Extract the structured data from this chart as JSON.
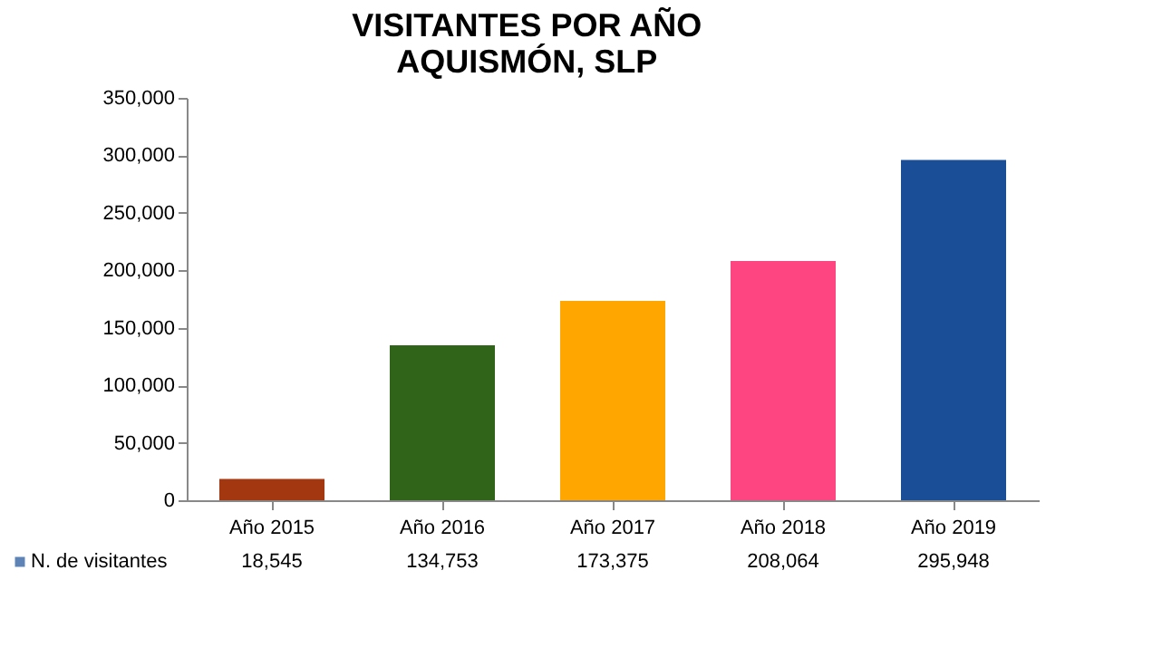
{
  "chart_data": {
    "type": "bar",
    "title": "VISITANTES POR AÑO\nAQUISMÓN, SLP",
    "categories": [
      "Año 2015",
      "Año 2016",
      "Año 2017",
      "Año 2018",
      "Año 2019"
    ],
    "series": [
      {
        "name": "N. de visitantes",
        "values": [
          18545,
          134753,
          173375,
          208064,
          295948
        ],
        "value_labels": [
          "18,545",
          "134,753",
          "173,375",
          "208,064",
          "295,948"
        ]
      }
    ],
    "colors": [
      "#a3370f",
      "#2f6419",
      "#ffa600",
      "#ff4581",
      "#1a4f97"
    ],
    "ylim": [
      0,
      350000
    ],
    "yticks": [
      {
        "value": 0,
        "label": "0"
      },
      {
        "value": 50000,
        "label": "50,000"
      },
      {
        "value": 100000,
        "label": "100,000"
      },
      {
        "value": 150000,
        "label": "150,000"
      },
      {
        "value": 200000,
        "label": "200,000"
      },
      {
        "value": 250000,
        "label": "250,000"
      },
      {
        "value": 300000,
        "label": "300,000"
      },
      {
        "value": 350000,
        "label": "350,000"
      }
    ],
    "grid": false,
    "legend": "bottom left"
  }
}
